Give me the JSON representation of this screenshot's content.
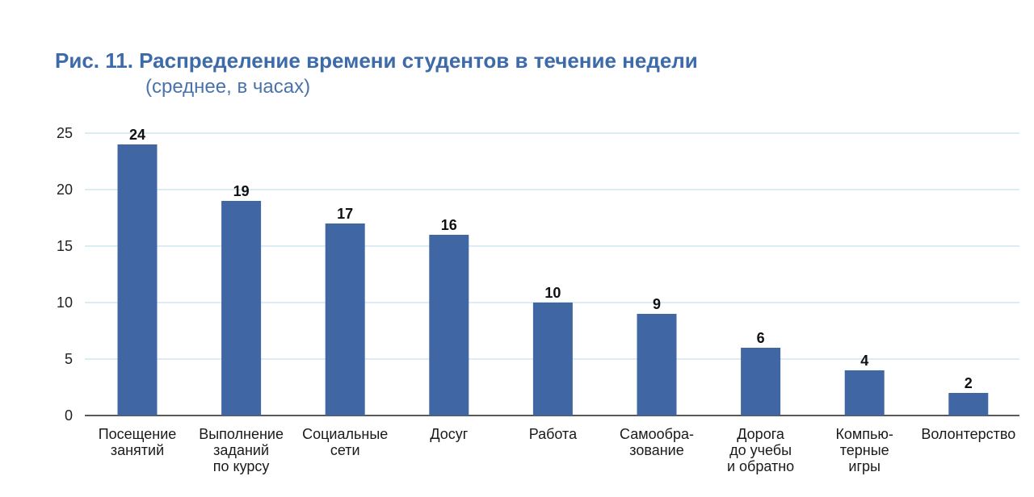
{
  "title": "Рис. 11. Распределение времени студентов в течение недели",
  "subtitle": "(среднее, в часах)",
  "colors": {
    "bar": "#4067a4",
    "grid": "#cfe6f0",
    "title": "#3d6aa8",
    "axis": "#222222"
  },
  "chart_data": {
    "type": "bar",
    "categories": [
      [
        "Посещение",
        "занятий"
      ],
      [
        "Выполнение",
        "заданий",
        "по курсу"
      ],
      [
        "Социальные",
        "сети"
      ],
      [
        "Досуг"
      ],
      [
        "Работа"
      ],
      [
        "Самообра-",
        "зование"
      ],
      [
        "Дорога",
        "до учебы",
        "и обратно"
      ],
      [
        "Компью-",
        "терные",
        "игры"
      ],
      [
        "Волонтерство"
      ]
    ],
    "values": [
      24,
      19,
      17,
      16,
      10,
      9,
      6,
      4,
      2
    ],
    "ylim": [
      0,
      25
    ],
    "yticks": [
      0,
      5,
      10,
      15,
      20,
      25
    ],
    "grid": true,
    "data_labels": true
  }
}
